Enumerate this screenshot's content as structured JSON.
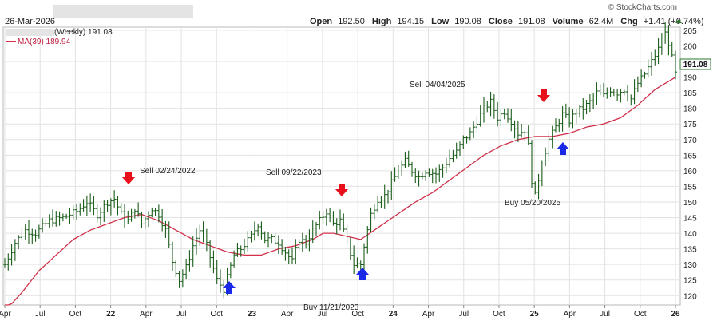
{
  "header": {
    "date": "26-Mar-2026",
    "series_label": "(Weekly) 191.08",
    "ma_label": "MA(39) 189.94",
    "watermark": "© StockCharts.com",
    "quote": {
      "open_label": "Open",
      "open": "192.50",
      "high_label": "High",
      "high": "194.15",
      "low_label": "Low",
      "low": "190.08",
      "close_label": "Close",
      "close": "191.08",
      "volume_label": "Volume",
      "volume": "62.4M",
      "chg_label": "Chg",
      "chg": "+1.41 (+0.74%)"
    },
    "last_price_tag": "191.08"
  },
  "colors": {
    "bars": "#1a5c1a",
    "ma": "#d0304a",
    "grid": "#e2e2e2",
    "sell_arrow": "#e8101a",
    "buy_arrow": "#1a28e8",
    "price_tag_border": "#2a7a2a"
  },
  "annotations": [
    {
      "text": "Sell 02/24/2022",
      "type": "sell"
    },
    {
      "text": "Sell 09/22/2023",
      "type": "sell"
    },
    {
      "text": "Sell 04/04/2025",
      "type": "sell"
    },
    {
      "text": "Buy 11/21/2023",
      "type": "buy"
    },
    {
      "text": "Buy 05/20/2025",
      "type": "buy"
    }
  ],
  "chart_data": {
    "type": "ohlc-bar",
    "frequency": "weekly",
    "y_axis_side": "right",
    "ylim": [
      117,
      206
    ],
    "y_ticks": [
      120,
      125,
      130,
      135,
      140,
      145,
      150,
      155,
      160,
      165,
      170,
      175,
      180,
      185,
      190,
      195,
      200,
      205
    ],
    "x_ticks": [
      "Apr",
      "Jul",
      "Oct",
      "22",
      "Apr",
      "Jul",
      "Oct",
      "23",
      "Apr",
      "Jul",
      "Oct",
      "24",
      "Apr",
      "Jul",
      "Oct",
      "25",
      "Apr",
      "Jul",
      "Oct",
      "26"
    ],
    "x_tick_index": [
      0,
      13,
      26,
      39,
      52,
      65,
      78,
      91,
      104,
      117,
      130,
      143,
      156,
      169,
      182,
      195,
      208,
      221,
      234,
      247
    ],
    "close_anchors": [
      [
        0,
        130
      ],
      [
        3,
        137
      ],
      [
        6,
        141
      ],
      [
        9,
        140
      ],
      [
        13,
        144
      ],
      [
        17,
        145
      ],
      [
        21,
        147
      ],
      [
        24,
        150
      ],
      [
        27,
        146
      ],
      [
        30,
        150
      ],
      [
        32,
        151
      ],
      [
        34,
        146
      ],
      [
        36,
        144
      ],
      [
        38,
        148
      ],
      [
        40,
        143
      ],
      [
        43,
        148
      ],
      [
        45,
        146
      ],
      [
        47,
        141
      ],
      [
        49,
        131
      ],
      [
        51,
        125
      ],
      [
        53,
        129
      ],
      [
        55,
        136
      ],
      [
        57,
        141
      ],
      [
        59,
        136
      ],
      [
        62,
        125
      ],
      [
        64,
        122
      ],
      [
        67,
        133
      ],
      [
        69,
        135
      ],
      [
        72,
        139
      ],
      [
        74,
        143
      ],
      [
        76,
        138
      ],
      [
        78,
        138
      ],
      [
        80,
        137
      ],
      [
        82,
        134
      ],
      [
        84,
        131
      ],
      [
        86,
        138
      ],
      [
        88,
        137
      ],
      [
        90,
        141
      ],
      [
        92,
        144
      ],
      [
        94,
        147
      ],
      [
        96,
        143
      ],
      [
        98,
        144
      ],
      [
        100,
        137
      ],
      [
        102,
        130
      ],
      [
        104,
        130
      ],
      [
        105,
        136
      ],
      [
        107,
        146
      ],
      [
        109,
        151
      ],
      [
        111,
        152
      ],
      [
        113,
        156
      ],
      [
        115,
        160
      ],
      [
        117,
        163
      ],
      [
        119,
        160
      ],
      [
        121,
        158
      ],
      [
        123,
        160
      ],
      [
        126,
        159
      ],
      [
        128,
        161
      ],
      [
        130,
        164
      ],
      [
        132,
        166
      ],
      [
        134,
        170
      ],
      [
        136,
        172
      ],
      [
        138,
        176
      ],
      [
        140,
        180
      ],
      [
        142,
        182
      ],
      [
        144,
        177
      ],
      [
        146,
        179
      ],
      [
        148,
        176
      ],
      [
        150,
        172
      ],
      [
        152,
        173
      ],
      [
        153,
        168
      ],
      [
        154,
        157
      ],
      [
        155,
        152
      ],
      [
        157,
        163
      ],
      [
        159,
        170
      ],
      [
        161,
        174
      ],
      [
        163,
        178
      ],
      [
        165,
        176
      ],
      [
        167,
        179
      ],
      [
        169,
        180
      ],
      [
        171,
        182
      ],
      [
        173,
        185
      ],
      [
        175,
        184
      ],
      [
        177,
        186
      ],
      [
        179,
        185
      ],
      [
        181,
        186
      ],
      [
        183,
        183
      ],
      [
        185,
        188
      ],
      [
        187,
        191
      ],
      [
        189,
        195
      ],
      [
        191,
        199
      ],
      [
        193,
        204
      ],
      [
        194,
        201
      ],
      [
        195,
        196
      ],
      [
        196,
        191
      ]
    ],
    "ma_anchors": [
      [
        0,
        115
      ],
      [
        5,
        121
      ],
      [
        10,
        128
      ],
      [
        15,
        133
      ],
      [
        20,
        138
      ],
      [
        25,
        141
      ],
      [
        30,
        143
      ],
      [
        35,
        145
      ],
      [
        40,
        146
      ],
      [
        45,
        144
      ],
      [
        50,
        141
      ],
      [
        55,
        138
      ],
      [
        60,
        136
      ],
      [
        65,
        134
      ],
      [
        70,
        133
      ],
      [
        75,
        133
      ],
      [
        80,
        135
      ],
      [
        85,
        136
      ],
      [
        90,
        138
      ],
      [
        93,
        140
      ],
      [
        96,
        140
      ],
      [
        100,
        139
      ],
      [
        104,
        138
      ],
      [
        108,
        141
      ],
      [
        112,
        144
      ],
      [
        116,
        147
      ],
      [
        120,
        150
      ],
      [
        125,
        153
      ],
      [
        130,
        157
      ],
      [
        135,
        161
      ],
      [
        140,
        165
      ],
      [
        145,
        168
      ],
      [
        150,
        170
      ],
      [
        155,
        171
      ],
      [
        160,
        171
      ],
      [
        165,
        172
      ],
      [
        170,
        174
      ],
      [
        175,
        175
      ],
      [
        180,
        177
      ],
      [
        185,
        181
      ],
      [
        190,
        186
      ],
      [
        193,
        188
      ],
      [
        196,
        189.94
      ]
    ],
    "bars_weeks": 197,
    "last": {
      "open": 192.5,
      "high": 194.15,
      "low": 190.08,
      "close": 191.08,
      "volume": "62.4M",
      "ma39": 189.94
    }
  }
}
